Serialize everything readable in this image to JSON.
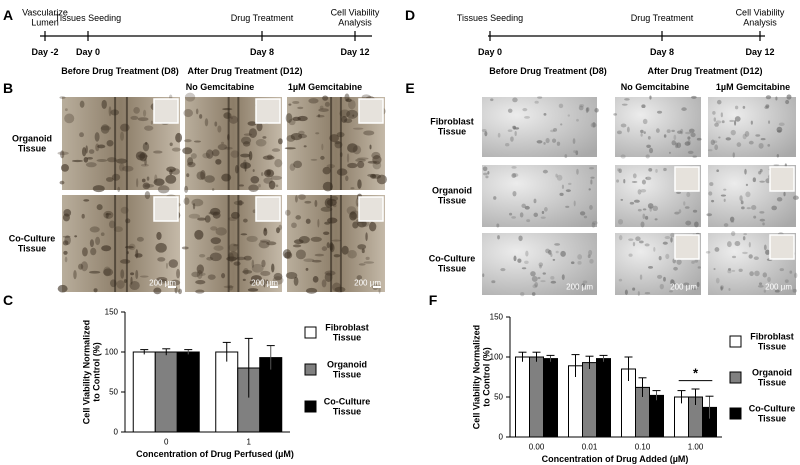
{
  "panel_letters": [
    "A",
    "B",
    "C",
    "D",
    "E",
    "F"
  ],
  "timeline_a": [
    {
      "label": "Vascularize Lumen",
      "day": "Day -2"
    },
    {
      "label": "Tissues Seeding",
      "day": "Day 0"
    },
    {
      "label": "Drug Treatment",
      "day": "Day 8"
    },
    {
      "label": "Cell Viability Analysis",
      "day": "Day 12"
    }
  ],
  "timeline_d": [
    {
      "label": "Tissues Seeding",
      "day": "Day 0"
    },
    {
      "label": "Drug Treatment",
      "day": "Day 8"
    },
    {
      "label": "Cell Viability Analysis",
      "day": "Day 12"
    }
  ],
  "panel_b": {
    "before": "Before Drug Treatment (D8)",
    "after": "After Drug Treatment (D12)",
    "no_drug": "No Gemcitabine",
    "drug": "1µM Gemcitabine",
    "rows": [
      "Organoid Tissue",
      "Co-Culture Tissue"
    ],
    "scale_bars": [
      "200 µm",
      "200 µm",
      "200 µm"
    ]
  },
  "panel_e": {
    "before": "Before Drug Treatment (D8)",
    "after": "After Drug Treatment (D12)",
    "no_drug": "No Gemcitabine",
    "drug": "1µM Gemcitabine",
    "rows": [
      "Fibroblast Tissue",
      "Organoid Tissue",
      "Co-Culture Tissue"
    ],
    "scale_bars": [
      "200 µm",
      "200 µm",
      "200 µm"
    ]
  },
  "chart_data": [
    {
      "type": "bar",
      "y_label": "Cell Viability Normalized to Control (%)",
      "x_label": "Concentration  of Drug Perfused (µM)",
      "categories": [
        "0",
        "1"
      ],
      "ylim": [
        0,
        150
      ],
      "yticks": [
        0,
        50,
        100,
        150
      ],
      "series": [
        {
          "name": "Fibroblast Tissue",
          "color": "#ffffff",
          "values": [
            100,
            100
          ],
          "errors": [
            3,
            12
          ]
        },
        {
          "name": "Organoid Tissue",
          "color": "#808080",
          "values": [
            100,
            80
          ],
          "errors": [
            4,
            37
          ]
        },
        {
          "name": "Co-Culture Tissue",
          "color": "#000000",
          "values": [
            100,
            93
          ],
          "errors": [
            3,
            15
          ]
        }
      ]
    },
    {
      "type": "bar",
      "y_label": "Cell Viability Normalized to Control (%)",
      "x_label": "Concentration  of Drug Added (µM)",
      "categories": [
        "0.00",
        "0.01",
        "0.10",
        "1.00"
      ],
      "ylim": [
        0,
        150
      ],
      "yticks": [
        0,
        50,
        100,
        150
      ],
      "annotations": [
        "*"
      ],
      "series": [
        {
          "name": "Fibroblast Tissue",
          "color": "#ffffff",
          "values": [
            100,
            89,
            85,
            50
          ],
          "errors": [
            6,
            14,
            15,
            8
          ]
        },
        {
          "name": "Organoid Tissue",
          "color": "#808080",
          "values": [
            100,
            93,
            62,
            50
          ],
          "errors": [
            6,
            8,
            12,
            10
          ]
        },
        {
          "name": "Co-Culture Tissue",
          "color": "#000000",
          "values": [
            98,
            98,
            52,
            37
          ],
          "errors": [
            4,
            4,
            6,
            14
          ]
        }
      ]
    }
  ]
}
